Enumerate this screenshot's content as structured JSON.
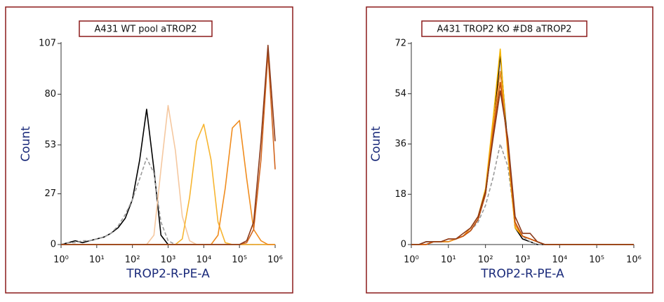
{
  "chart_data": [
    {
      "type": "line",
      "title": "A431 WT pool aTROP2",
      "xlabel": "TROP2-R-PE-A",
      "ylabel": "Count",
      "xscale": "log",
      "x": [
        1,
        1.6,
        2.5,
        4,
        6.3,
        10,
        16,
        25,
        40,
        63,
        100,
        160,
        250,
        400,
        630,
        1000,
        1600,
        2500,
        4000,
        6300,
        10000,
        16000,
        25000,
        40000,
        63000,
        100000,
        160000,
        250000,
        400000,
        630000,
        1000000
      ],
      "xlim": [
        1,
        1000000
      ],
      "xticks": [
        {
          "value": 1,
          "label": "10⁰"
        },
        {
          "value": 10,
          "label": "10¹"
        },
        {
          "value": 100,
          "label": "10²"
        },
        {
          "value": 1000,
          "label": "10³"
        },
        {
          "value": 10000,
          "label": "10⁴"
        },
        {
          "value": 100000,
          "label": "10⁵"
        },
        {
          "value": 1000000,
          "label": "10⁶"
        }
      ],
      "ylim": [
        0,
        107
      ],
      "yticks": [
        0,
        27,
        53,
        80,
        107
      ],
      "series": [
        {
          "color": "#000000",
          "dash": false,
          "values": [
            0,
            1,
            2,
            1,
            2,
            3,
            4,
            6,
            9,
            14,
            24,
            45,
            72,
            40,
            5,
            0,
            0,
            0,
            0,
            0,
            0,
            0,
            0,
            0,
            0,
            0,
            0,
            0,
            0,
            0,
            0
          ]
        },
        {
          "color": "#9a9a9a",
          "dash": true,
          "values": [
            0,
            1,
            1,
            2,
            2,
            3,
            4,
            6,
            10,
            16,
            24,
            35,
            46,
            38,
            12,
            2,
            0,
            0,
            0,
            0,
            0,
            0,
            0,
            0,
            0,
            0,
            0,
            0,
            0,
            0,
            0
          ]
        },
        {
          "color": "#f5c8a0",
          "dash": false,
          "values": [
            0,
            0,
            0,
            0,
            0,
            0,
            0,
            0,
            0,
            0,
            0,
            0,
            0,
            5,
            40,
            74,
            50,
            15,
            2,
            0,
            0,
            0,
            0,
            0,
            0,
            0,
            0,
            0,
            0,
            0,
            0
          ]
        },
        {
          "color": "#f7b531",
          "dash": false,
          "values": [
            0,
            0,
            0,
            0,
            0,
            0,
            0,
            0,
            0,
            0,
            0,
            0,
            0,
            0,
            0,
            0,
            0,
            3,
            25,
            55,
            64,
            45,
            12,
            1,
            0,
            0,
            0,
            0,
            0,
            0,
            0
          ]
        },
        {
          "color": "#f08c1e",
          "dash": false,
          "values": [
            0,
            0,
            0,
            0,
            0,
            0,
            0,
            0,
            0,
            0,
            0,
            0,
            0,
            0,
            0,
            0,
            0,
            0,
            0,
            0,
            0,
            0,
            5,
            30,
            62,
            66,
            35,
            8,
            2,
            0,
            0
          ]
        },
        {
          "color": "#d2651e",
          "dash": false,
          "values": [
            0,
            0,
            0,
            0,
            0,
            0,
            0,
            0,
            0,
            0,
            0,
            0,
            0,
            0,
            0,
            0,
            0,
            0,
            0,
            0,
            0,
            0,
            0,
            0,
            0,
            0,
            1,
            8,
            45,
            102,
            40
          ]
        },
        {
          "color": "#8b3a1a",
          "dash": false,
          "values": [
            0,
            0,
            0,
            0,
            0,
            0,
            0,
            0,
            0,
            0,
            0,
            0,
            0,
            0,
            0,
            0,
            0,
            0,
            0,
            0,
            0,
            0,
            0,
            0,
            0,
            0,
            2,
            12,
            55,
            106,
            55
          ]
        }
      ]
    },
    {
      "type": "line",
      "title": "A431 TROP2 KO #D8 aTROP2",
      "xlabel": "TROP2-R-PE-A",
      "ylabel": "Count",
      "xscale": "log",
      "x": [
        1,
        1.6,
        2.5,
        4,
        6.3,
        10,
        16,
        25,
        40,
        63,
        100,
        160,
        250,
        400,
        630,
        1000,
        1600,
        2500,
        4000,
        6300,
        10000,
        16000,
        25000,
        40000,
        63000,
        100000,
        160000,
        250000,
        400000,
        630000,
        1000000
      ],
      "xlim": [
        1,
        1000000
      ],
      "xticks": [
        {
          "value": 1,
          "label": "10⁰"
        },
        {
          "value": 10,
          "label": "10¹"
        },
        {
          "value": 100,
          "label": "10²"
        },
        {
          "value": 1000,
          "label": "10³"
        },
        {
          "value": 10000,
          "label": "10⁴"
        },
        {
          "value": 100000,
          "label": "10⁵"
        },
        {
          "value": 1000000,
          "label": "10⁶"
        }
      ],
      "ylim": [
        0,
        72
      ],
      "yticks": [
        0,
        18,
        36,
        54,
        72
      ],
      "series": [
        {
          "color": "#000000",
          "dash": false,
          "values": [
            0,
            0,
            1,
            1,
            1,
            1,
            2,
            3,
            5,
            9,
            18,
            40,
            68,
            35,
            6,
            2,
            1,
            0,
            0,
            0,
            0,
            0,
            0,
            0,
            0,
            0,
            0,
            0,
            0,
            0,
            0
          ]
        },
        {
          "color": "#9a9a9a",
          "dash": true,
          "values": [
            0,
            0,
            1,
            1,
            1,
            1,
            2,
            3,
            5,
            8,
            14,
            24,
            36,
            28,
            8,
            3,
            1,
            0,
            0,
            0,
            0,
            0,
            0,
            0,
            0,
            0,
            0,
            0,
            0,
            0,
            0
          ]
        },
        {
          "color": "#f4b400",
          "dash": false,
          "values": [
            0,
            0,
            0,
            1,
            1,
            1,
            2,
            3,
            6,
            10,
            20,
            45,
            70,
            32,
            6,
            3,
            2,
            1,
            0,
            0,
            0,
            0,
            0,
            0,
            0,
            0,
            0,
            0,
            0,
            0,
            0
          ]
        },
        {
          "color": "#f08c1e",
          "dash": false,
          "values": [
            0,
            0,
            0,
            1,
            1,
            1,
            2,
            3,
            6,
            10,
            19,
            42,
            62,
            34,
            7,
            3,
            2,
            1,
            0,
            0,
            0,
            0,
            0,
            0,
            0,
            0,
            0,
            0,
            0,
            0,
            0
          ]
        },
        {
          "color": "#c8500a",
          "dash": false,
          "values": [
            0,
            0,
            0,
            1,
            1,
            2,
            2,
            3,
            5,
            9,
            18,
            40,
            58,
            36,
            8,
            3,
            2,
            1,
            0,
            0,
            0,
            0,
            0,
            0,
            0,
            0,
            0,
            0,
            0,
            0,
            0
          ]
        },
        {
          "color": "#8b3a1a",
          "dash": false,
          "values": [
            0,
            0,
            1,
            1,
            1,
            2,
            2,
            4,
            6,
            10,
            19,
            38,
            55,
            38,
            10,
            4,
            4,
            1,
            0,
            0,
            0,
            0,
            0,
            0,
            0,
            0,
            0,
            0,
            0,
            0,
            0
          ]
        }
      ]
    }
  ]
}
